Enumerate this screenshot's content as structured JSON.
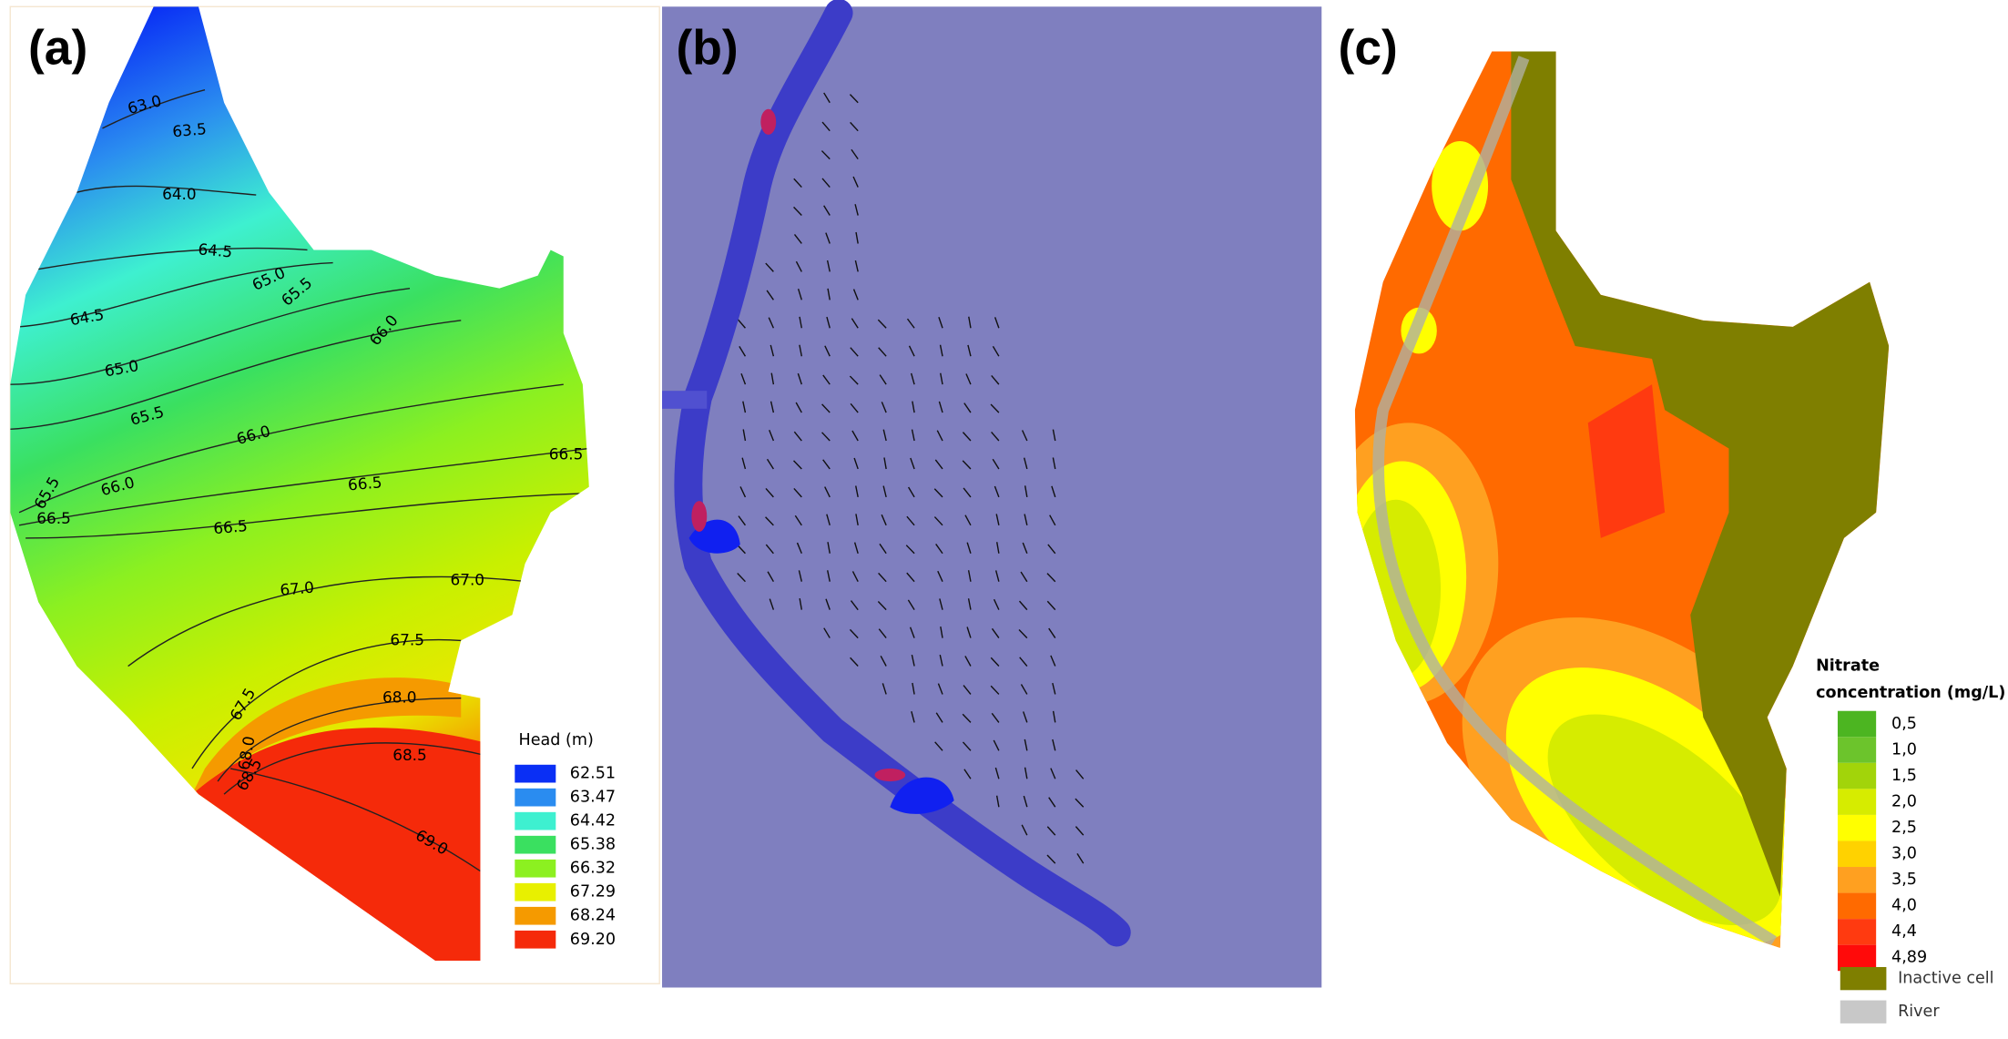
{
  "panels": [
    {
      "label": "(a)",
      "contour_labels": [
        "63.0",
        "63.5",
        "64.0",
        "64.5",
        "64.5",
        "65.0",
        "65.5",
        "65.0",
        "66.0",
        "65.5",
        "66.0",
        "66.5",
        "66.0",
        "65.5",
        "66.5",
        "66.5",
        "66.5",
        "67.0",
        "67.0",
        "67.5",
        "67.5",
        "68.0",
        "68.0",
        "68.5",
        "68.5",
        "69.0"
      ],
      "legend": {
        "title": "Head (m)",
        "items": [
          {
            "label": "62.51",
            "color": "#0a2ff5"
          },
          {
            "label": "63.47",
            "color": "#2a8cf0"
          },
          {
            "label": "64.42",
            "color": "#3ef0d0"
          },
          {
            "label": "65.38",
            "color": "#3ae060"
          },
          {
            "label": "66.32",
            "color": "#8cf020"
          },
          {
            "label": "67.29",
            "color": "#e8f000"
          },
          {
            "label": "68.24",
            "color": "#f59a00"
          },
          {
            "label": "69.20",
            "color": "#f52a0a"
          }
        ]
      }
    },
    {
      "label": "(b)"
    },
    {
      "label": "(c)",
      "legend": {
        "title": [
          "Nitrate",
          "concentration (mg/L)"
        ],
        "items": [
          {
            "label": "0,5",
            "color": "#4cb521"
          },
          {
            "label": "1,0",
            "color": "#6cc42c"
          },
          {
            "label": "1,5",
            "color": "#a2d40a"
          },
          {
            "label": "2,0",
            "color": "#d6ec00"
          },
          {
            "label": "2,5",
            "color": "#ffff00"
          },
          {
            "label": "3,0",
            "color": "#ffd200"
          },
          {
            "label": "3,5",
            "color": "#ffa020"
          },
          {
            "label": "4,0",
            "color": "#ff6a00"
          },
          {
            "label": "4,4",
            "color": "#ff3a10"
          },
          {
            "label": "4,89",
            "color": "#ff0a0a"
          }
        ],
        "extra": [
          {
            "label": "Inactive cell",
            "color": "#7f7f00"
          },
          {
            "label": "River",
            "color": "#c8c8c8"
          }
        ]
      }
    }
  ]
}
